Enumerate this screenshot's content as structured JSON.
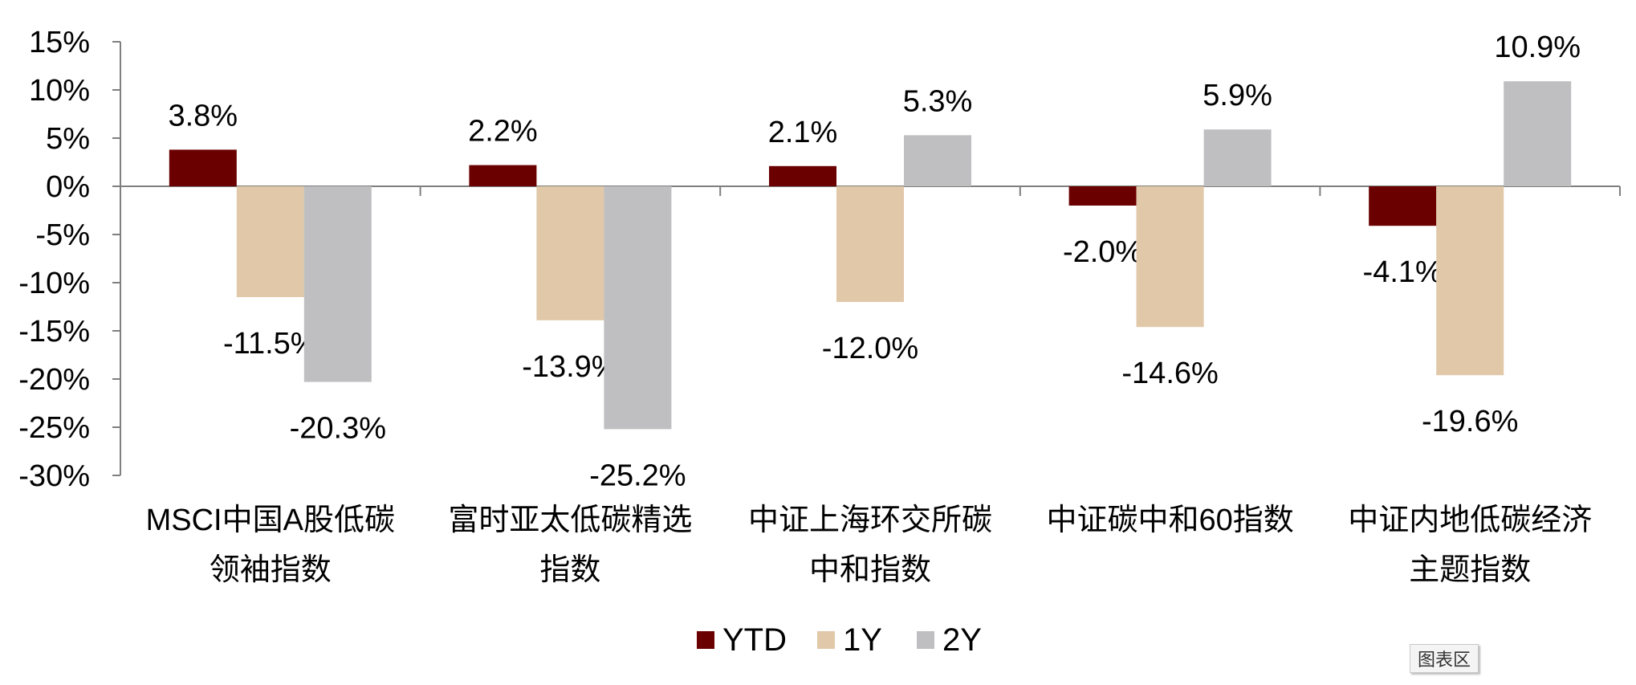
{
  "chart_data": {
    "type": "bar",
    "categories": [
      [
        "MSCI中国A股低碳",
        "领袖指数"
      ],
      [
        "富时亚太低碳精选",
        "指数"
      ],
      [
        "中证上海环交所碳",
        "中和指数"
      ],
      [
        "中证碳中和60指数"
      ],
      [
        "中证内地低碳经济",
        "主题指数"
      ]
    ],
    "series": [
      {
        "name": "YTD",
        "color": "#6b0000",
        "values": [
          3.8,
          2.2,
          2.1,
          -2.0,
          -4.1
        ],
        "labels": [
          "3.8%",
          "2.2%",
          "2.1%",
          "-2.0%",
          "-4.1%"
        ]
      },
      {
        "name": "1Y",
        "color": "#e0c8a8",
        "values": [
          -11.5,
          -13.9,
          -12.0,
          -14.6,
          -19.6
        ],
        "labels": [
          "-11.5%",
          "-13.9%",
          "-12.0%",
          "-14.6%",
          "-19.6%"
        ]
      },
      {
        "name": "2Y",
        "color": "#bfbfc1",
        "values": [
          -20.3,
          -25.2,
          5.3,
          5.9,
          10.9
        ],
        "labels": [
          "-20.3%",
          "-25.2%",
          "5.3%",
          "5.9%",
          "10.9%"
        ]
      }
    ],
    "yticks": [
      "15%",
      "10%",
      "5%",
      "0%",
      "-5%",
      "-10%",
      "-15%",
      "-20%",
      "-25%",
      "-30%"
    ],
    "ylim": [
      -30,
      15
    ],
    "title": "",
    "xlabel": "",
    "ylabel": "",
    "grid": false,
    "legend_position": "bottom-center"
  },
  "toolbar": {
    "badge_label": "图表区"
  }
}
